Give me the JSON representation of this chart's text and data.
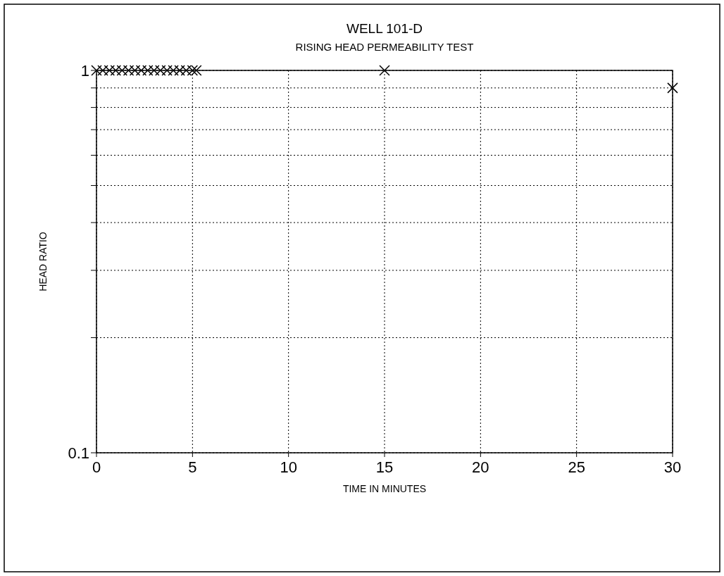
{
  "chart_data": {
    "type": "scatter",
    "title": "WELL 101-D",
    "subtitle": "RISING HEAD PERMEABILITY TEST",
    "xlabel": "TIME IN MINUTES",
    "ylabel": "HEAD RATIO",
    "x": [
      0,
      0.33,
      0.67,
      1,
      1.33,
      1.67,
      2,
      2.33,
      2.67,
      3,
      3.33,
      3.67,
      4,
      4.33,
      4.67,
      5,
      5.2,
      15,
      30
    ],
    "values": [
      1,
      1,
      1,
      1,
      1,
      1,
      1,
      1,
      1,
      1,
      1,
      1,
      1,
      1,
      1,
      1,
      1,
      1,
      0.9
    ],
    "color": "#000000",
    "marker": "cross",
    "log": "y",
    "grid": true,
    "xlim": [
      0,
      30
    ],
    "xticks": [
      0,
      5,
      10,
      15,
      20,
      25,
      30
    ],
    "ylim": [
      0.1,
      1
    ],
    "yticks": [
      0.1,
      {
        "value": 0.2,
        "label": null
      },
      {
        "value": 0.3,
        "label": null
      },
      {
        "value": 0.4,
        "label": null
      },
      {
        "value": 0.5,
        "label": null
      },
      {
        "value": 0.6,
        "label": null
      },
      {
        "value": 0.7,
        "label": null
      },
      {
        "value": 0.8,
        "label": null
      },
      {
        "value": 0.9,
        "label": null
      },
      1
    ]
  }
}
